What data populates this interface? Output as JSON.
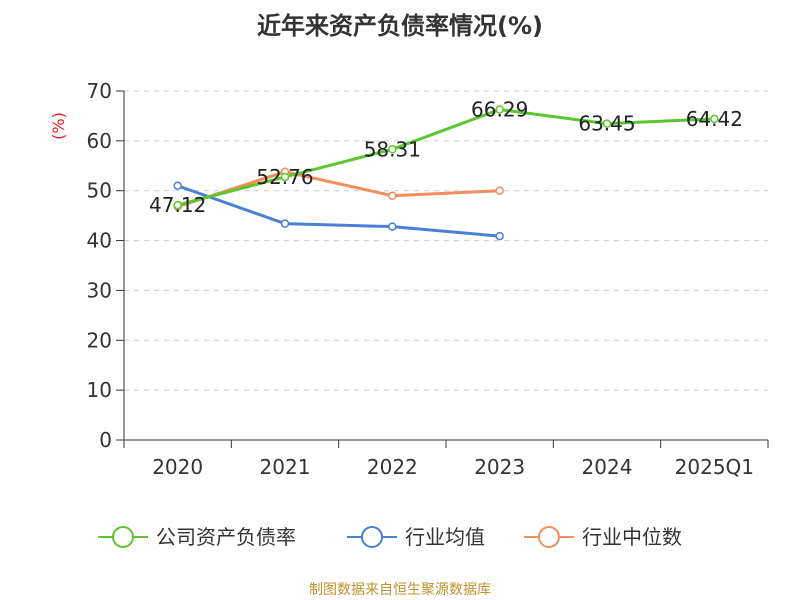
{
  "chart_data": {
    "type": "line",
    "title": "近年来资产负债率情况(%)",
    "ylabel": "(%)",
    "xlabel": "",
    "categories": [
      "2020",
      "2021",
      "2022",
      "2023",
      "2024",
      "2025Q1"
    ],
    "ylim": [
      0,
      70
    ],
    "yticks": [
      0,
      10,
      20,
      30,
      40,
      50,
      60,
      70
    ],
    "grid": "horizontal dashed",
    "legend_position": "bottom",
    "series": [
      {
        "name": "公司资产负债率",
        "color": "#5bc62e",
        "values": [
          47.12,
          52.76,
          58.31,
          66.29,
          63.45,
          64.42
        ],
        "labels": [
          "47.12",
          "52.76",
          "58.31",
          "66.29",
          "63.45",
          "64.42"
        ]
      },
      {
        "name": "行业均值",
        "color": "#4a7fd6",
        "values": [
          51.0,
          43.4,
          42.8,
          40.9,
          null,
          null
        ]
      },
      {
        "name": "行业中位数",
        "color": "#f28e5a",
        "values": [
          46.8,
          53.8,
          49.0,
          50.0,
          null,
          null
        ]
      }
    ]
  },
  "source": "制图数据来自恒生聚源数据库"
}
